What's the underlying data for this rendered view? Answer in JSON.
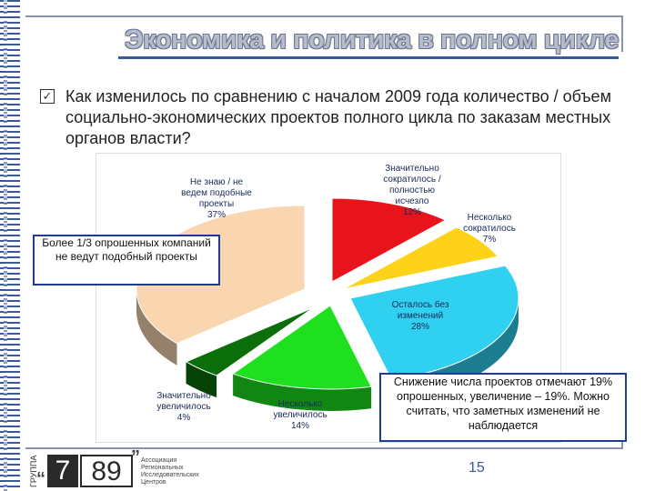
{
  "header": {
    "title": "Экономика и политика в полном цикле"
  },
  "question": {
    "icon": "checkbox-icon",
    "text": "Как изменилось по сравнению с началом 2009 года количество / объем социально-экономических проектов полного цикла по заказам местных органов власти?"
  },
  "chart_data": {
    "type": "pie",
    "slices": [
      {
        "label": "Значительно сократилось / полностью исчезло",
        "value": 12,
        "value_label": "12%",
        "color": "#e8141b"
      },
      {
        "label": "Несколько сократилось",
        "value": 7,
        "value_label": "7%",
        "color": "#ffd21a"
      },
      {
        "label": "Осталось без изменений",
        "value": 28,
        "value_label": "28%",
        "color": "#2fd0f0"
      },
      {
        "label": "Несколько увеличилось",
        "value": 14,
        "value_label": "14%",
        "color": "#1ee01e"
      },
      {
        "label": "Значительно увеличилось",
        "value": 4,
        "value_label": "4%",
        "color": "#0a6e0a"
      },
      {
        "label": "Не знаю / не ведем подобные проекты",
        "value": 37,
        "value_label": "37%",
        "color": "#f9d6b0"
      }
    ]
  },
  "callouts": {
    "left": "Более 1/3 опрошенных компаний не ведут подобный проекты",
    "right": "Снижение числа проектов отмечают 19% опрошенных, увеличение – 19%. Можно считать, что заметных изменений не наблюдается"
  },
  "footer": {
    "page_number": "15",
    "logo_group": "ГРУППА",
    "logo_7": "7",
    "logo_89": "89",
    "logo_text": "Ассоциация Региональных Исследовательских Центров",
    "quote_open": "“",
    "quote_close": "”"
  }
}
